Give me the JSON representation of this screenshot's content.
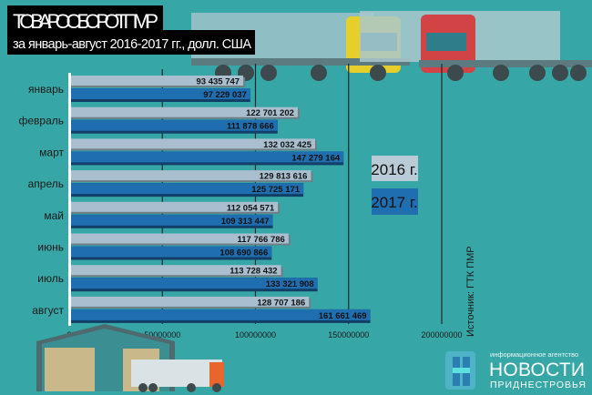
{
  "header": {
    "title": "ТОВАРООБОРОТ ПМР",
    "subtitle": "за январь-август 2016-2017 гг., долл. США"
  },
  "source": "Источник: ГТК ПМР",
  "logo": {
    "tagline": "информационное агентство",
    "name": "НОВОСТИ",
    "region": "ПРИДНЕСТРОВЬЯ"
  },
  "colors": {
    "background": "#37a6a6",
    "series_2016": "#a9bfd0",
    "series_2017": "#1f6eb0"
  },
  "chart_data": {
    "type": "bar",
    "orientation": "horizontal",
    "title": "ТОВАРООБОРОТ ПМР",
    "subtitle": "за январь-август 2016-2017 гг., долл. США",
    "categories": [
      "январь",
      "февраль",
      "март",
      "апрель",
      "май",
      "июнь",
      "июль",
      "август"
    ],
    "series": [
      {
        "name": "2016 г.",
        "color": "#a9bfd0",
        "values": [
          93435747,
          122701202,
          132032425,
          129813616,
          112054571,
          117766786,
          113728432,
          128707186
        ],
        "labels": [
          "93 435 747",
          "122 701 202",
          "132 032 425",
          "129 813 616",
          "112 054 571",
          "117 766 786",
          "113 728 432",
          "128 707 186"
        ]
      },
      {
        "name": "2017 г.",
        "color": "#1f6eb0",
        "values": [
          97229037,
          111878666,
          147279164,
          125725171,
          109313447,
          108690866,
          133321908,
          161661469
        ],
        "labels": [
          "97 229 037",
          "111 878 666",
          "147 279 164",
          "125 725 171",
          "109 313 447",
          "108 690 866",
          "133 321 908",
          "161 661 469"
        ]
      }
    ],
    "xlim": [
      0,
      200000000
    ],
    "xticks": [
      "0",
      "50000000",
      "100000000",
      "150000000",
      "200000000"
    ],
    "xtick_values": [
      0,
      50000000,
      100000000,
      150000000,
      200000000
    ],
    "grid": true,
    "legend": "right"
  }
}
